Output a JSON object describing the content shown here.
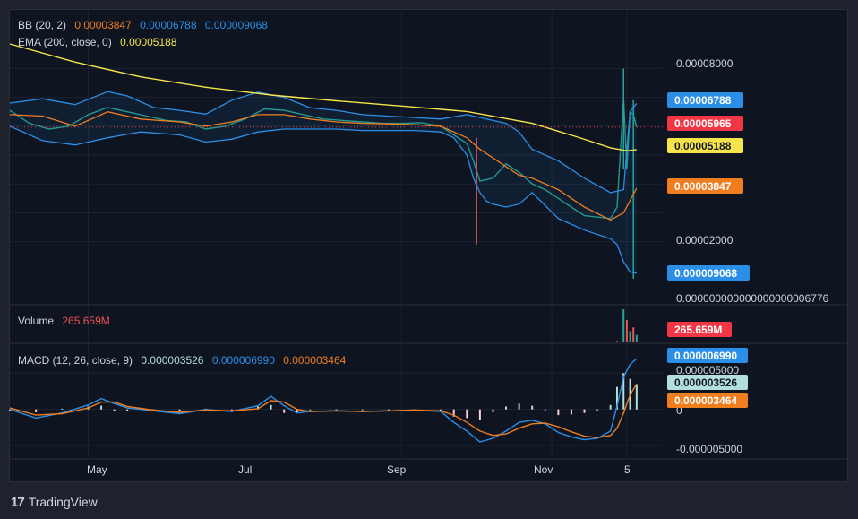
{
  "colors": {
    "bb_band": "#2b8fe8",
    "bb_basis": "#f07d1e",
    "ema": "#f5e44a",
    "price_marker": "#f23645",
    "macd_line": "#2b8fe8",
    "signal_line": "#f07d1e",
    "hist_pos": "#b2dfdb",
    "hist_neg": "#ffcdd2",
    "up_candle": "#26a69a",
    "down_candle": "#ef5350",
    "volume": "#ef5350"
  },
  "legend": {
    "bb": {
      "name": "BB (20, 2)",
      "basis": "0.00003847",
      "upper": "0.00006788",
      "lower": "0.000009068"
    },
    "ema": {
      "name": "EMA (200, close, 0)",
      "value": "0.00005188"
    },
    "volume": {
      "name": "Volume",
      "value": "265.659M"
    },
    "macd": {
      "name": "MACD (12, 26, close, 9)",
      "hist": "0.000003526",
      "macd": "0.000006990",
      "signal": "0.000003464"
    }
  },
  "price_axis": {
    "ticks": [
      "0.00008000",
      "0.00002000",
      "0.000000000000000000006776"
    ],
    "markers": [
      {
        "label": "0.00006788",
        "value": 6.788e-05,
        "color": "#2b8fe8",
        "text_color": "#ffffff"
      },
      {
        "label": "0.00005965",
        "value": 5.965e-05,
        "color": "#f23645",
        "text_color": "#ffffff"
      },
      {
        "label": "0.00005188",
        "value": 5.188e-05,
        "color": "#f5e44a",
        "text_color": "#131722"
      },
      {
        "label": "0.00003847",
        "value": 3.847e-05,
        "color": "#f07d1e",
        "text_color": "#ffffff"
      },
      {
        "label": "0.000009068",
        "value": 9.068e-06,
        "color": "#2b8fe8",
        "text_color": "#ffffff"
      }
    ]
  },
  "volume_axis": {
    "marker": "265.659M"
  },
  "macd_axis": {
    "ticks": [
      "0.000005000",
      "0",
      "-0.000005000"
    ],
    "markers": [
      {
        "label": "0.000006990",
        "value": 6.99e-06,
        "color": "#2b8fe8",
        "text_color": "#ffffff"
      },
      {
        "label": "0.000003526",
        "value": 3.526e-06,
        "color": "#b2dfdb",
        "text_color": "#131722"
      },
      {
        "label": "0.000003464",
        "value": 3.464e-06,
        "color": "#f07d1e",
        "text_color": "#ffffff"
      }
    ]
  },
  "time_axis": {
    "labels": [
      "May",
      "Jul",
      "Sep",
      "Nov",
      "5"
    ]
  },
  "footer": {
    "brand": "TradingView",
    "logo": "17"
  },
  "chart_data": {
    "type": "line",
    "x_domain": [
      0,
      100
    ],
    "x_labels": [
      {
        "label": "May",
        "x": 12
      },
      {
        "label": "Jul",
        "x": 36
      },
      {
        "label": "Sep",
        "x": 60
      },
      {
        "label": "Nov",
        "x": 83
      },
      {
        "label": "5",
        "x": 94.5
      }
    ],
    "ylim": [
      0,
      0.0001
    ],
    "macd_ylim": [
      -6.6e-06,
      8.5e-06
    ],
    "series": [
      {
        "name": "EMA (200, close, 0)",
        "x": [
          0,
          10,
          20,
          30,
          40,
          50,
          60,
          70,
          80,
          87,
          92,
          94.5,
          96
        ],
        "values": [
          8.85e-05,
          8.22e-05,
          7.71e-05,
          7.35e-05,
          7.08e-05,
          6.88e-05,
          6.7e-05,
          6.51e-05,
          6.1e-05,
          5.62e-05,
          5.25e-05,
          5.15e-05,
          5.19e-05
        ]
      },
      {
        "name": "BB upper",
        "x": [
          0,
          5,
          10,
          15,
          18,
          22,
          26,
          30,
          34,
          38,
          42,
          46,
          50,
          54,
          58,
          62,
          66,
          70,
          72,
          74,
          76,
          78,
          80,
          84,
          88,
          92,
          94,
          94.5,
          95,
          96
        ],
        "values": [
          6.8e-05,
          6.95e-05,
          6.75e-05,
          7.2e-05,
          7.05e-05,
          6.65e-05,
          6.55e-05,
          6.42e-05,
          6.9e-05,
          7.18e-05,
          7e-05,
          6.64e-05,
          6.55e-05,
          6.4e-05,
          6.35e-05,
          6.3e-05,
          6.25e-05,
          6.4e-05,
          6.3e-05,
          6.2e-05,
          6.1e-05,
          5.8e-05,
          5.2e-05,
          4.8e-05,
          4.2e-05,
          3.7e-05,
          3.8e-05,
          5.2e-05,
          6.5e-05,
          6.79e-05
        ]
      },
      {
        "name": "BB basis",
        "x": [
          0,
          5,
          10,
          15,
          20,
          26,
          30,
          34,
          38,
          42,
          46,
          50,
          54,
          58,
          62,
          66,
          70,
          72,
          74,
          76,
          78,
          80,
          84,
          88,
          92,
          94,
          96
        ],
        "values": [
          6.4e-05,
          6.35e-05,
          6e-05,
          6.5e-05,
          6.25e-05,
          6.15e-05,
          6e-05,
          6.15e-05,
          6.4e-05,
          6.4e-05,
          6.25e-05,
          6.15e-05,
          6.1e-05,
          6.08e-05,
          6.05e-05,
          6e-05,
          5.6e-05,
          5.2e-05,
          4.9e-05,
          4.6e-05,
          4.3e-05,
          4.2e-05,
          3.8e-05,
          3.2e-05,
          2.75e-05,
          3e-05,
          3.85e-05
        ]
      },
      {
        "name": "BB lower",
        "x": [
          0,
          5,
          10,
          15,
          20,
          26,
          30,
          34,
          38,
          42,
          46,
          50,
          54,
          58,
          62,
          66,
          68,
          70,
          71,
          72,
          73,
          74,
          76,
          78,
          80,
          84,
          88,
          92,
          93,
          94,
          95,
          96
        ],
        "values": [
          6e-05,
          5.5e-05,
          5.35e-05,
          5.6e-05,
          5.8e-05,
          5.7e-05,
          5.45e-05,
          5.55e-05,
          5.8e-05,
          5.9e-05,
          5.9e-05,
          5.9e-05,
          5.85e-05,
          5.85e-05,
          5.85e-05,
          5.8e-05,
          5.6e-05,
          5e-05,
          4.2e-05,
          3.7e-05,
          3.4e-05,
          3.3e-05,
          3.2e-05,
          3.3e-05,
          3.7e-05,
          2.8e-05,
          2.4e-05,
          2.1e-05,
          1.9e-05,
          1.3e-05,
          9.5e-06,
          9.1e-06
        ]
      },
      {
        "name": "Price (close)",
        "x": [
          0,
          3,
          6,
          9,
          12,
          15,
          18,
          21,
          24,
          27,
          30,
          33,
          36,
          39,
          42,
          45,
          48,
          51,
          54,
          57,
          60,
          63,
          66,
          68,
          70,
          71,
          72,
          74,
          76,
          78,
          80,
          82,
          84,
          86,
          88,
          90,
          92,
          93,
          94,
          94.5,
          95,
          95.5,
          96
        ],
        "values": [
          6.55e-05,
          6.1e-05,
          5.9e-05,
          6e-05,
          6.4e-05,
          6.65e-05,
          6.5e-05,
          6.35e-05,
          6.2e-05,
          6.15e-05,
          5.9e-05,
          6e-05,
          6.25e-05,
          6.6e-05,
          6.55e-05,
          6.4e-05,
          6.25e-05,
          6.2e-05,
          6.15e-05,
          6.1e-05,
          6.1e-05,
          6.12e-05,
          6e-05,
          5.7e-05,
          5.4e-05,
          4.8e-05,
          4.1e-05,
          4.2e-05,
          4.7e-05,
          4.4e-05,
          4e-05,
          3.8e-05,
          3.5e-05,
          3.2e-05,
          2.9e-05,
          2.85e-05,
          2.8e-05,
          3.2e-05,
          7e-05,
          4.5e-05,
          6.5e-05,
          6.4e-05,
          5.97e-05
        ]
      }
    ],
    "volume": {
      "x": [
        93,
        94,
        94.5,
        95,
        95.5,
        96
      ],
      "values": [
        12,
        265.659,
        180,
        90,
        120,
        60
      ]
    },
    "macd": {
      "x": [
        0,
        4,
        8,
        12,
        14,
        16,
        18,
        22,
        26,
        30,
        34,
        38,
        40,
        42,
        44,
        46,
        50,
        54,
        58,
        62,
        66,
        68,
        70,
        72,
        74,
        76,
        78,
        80,
        82,
        84,
        86,
        88,
        90,
        92,
        93,
        94,
        95,
        96
      ],
      "macd_line": [
        0.0,
        -1.2e-06,
        -5e-07,
        6e-07,
        1.5e-06,
        8e-07,
        2e-07,
        -2e-07,
        -6e-07,
        0.0,
        -3e-07,
        5e-07,
        1.8e-06,
        5e-07,
        -5e-07,
        -3e-07,
        -2e-07,
        -3e-07,
        -2e-07,
        -1e-07,
        -3e-07,
        -1.8e-06,
        -3e-06,
        -4.5e-06,
        -4e-06,
        -3e-06,
        -1.8e-06,
        -1.5e-06,
        -2e-06,
        -3.2e-06,
        -3.8e-06,
        -4.2e-06,
        -4e-06,
        -3e-06,
        5e-07,
        4.5e-06,
        6.2e-06,
        7e-06
      ],
      "signal_line": [
        2e-07,
        -8e-07,
        -6e-07,
        2e-07,
        1e-06,
        1e-06,
        4e-07,
        -1e-07,
        -4e-07,
        -1e-07,
        -2e-07,
        1e-07,
        1.2e-06,
        1e-06,
        0.0,
        -3e-07,
        -2e-07,
        -3e-07,
        -2e-07,
        -1e-07,
        -2e-07,
        -8e-07,
        -1.8e-06,
        -3e-06,
        -3.6e-06,
        -3.4e-06,
        -2.6e-06,
        -2e-06,
        -1.9e-06,
        -2.4e-06,
        -3.1e-06,
        -3.7e-06,
        -3.9e-06,
        -3.6e-06,
        -2.6e-06,
        -5e-07,
        2e-06,
        3.5e-06
      ],
      "histogram": [
        -2e-07,
        -4e-07,
        1e-07,
        4e-07,
        5e-07,
        -2e-07,
        -2e-07,
        -1e-07,
        -2e-07,
        1e-07,
        -1e-07,
        4e-07,
        6e-07,
        -5e-07,
        -5e-07,
        0.0,
        0.0,
        0.0,
        0.0,
        0.0,
        -1e-07,
        -1e-06,
        -1.2e-06,
        -1.5e-06,
        -4e-07,
        4e-07,
        8e-07,
        5e-07,
        -1e-07,
        -8e-07,
        -7e-07,
        -5e-07,
        -1e-07,
        6e-07,
        3.1e-06,
        5e-06,
        4.2e-06,
        3.5e-06
      ]
    }
  }
}
